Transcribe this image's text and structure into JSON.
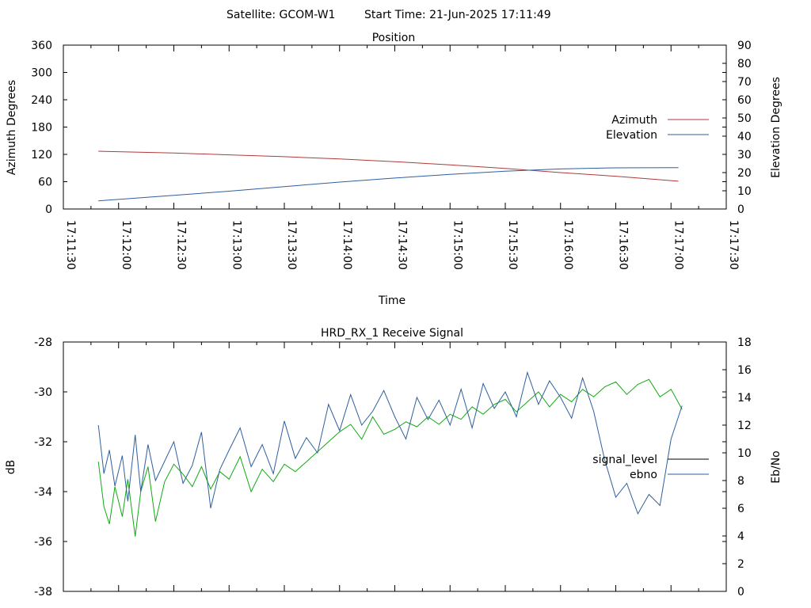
{
  "header": {
    "satellite": "Satellite: GCOM-W1",
    "start_time": "Start Time: 21-Jun-2025 17:11:49"
  },
  "colors": {
    "azimuth": "#b03a3a",
    "elevation": "#2f5f9f",
    "signal_level": "#000000",
    "ebno_legend": "#2f5f9f",
    "green_series": "#11aa11",
    "blue_series": "#2f5f9f"
  },
  "chart_data": [
    {
      "type": "line",
      "title": "Position",
      "xlabel": "Time",
      "ylabel": "Azimuth Degrees",
      "y2label": "Elevation Degrees",
      "xlim": [
        "17:11:30",
        "17:17:30"
      ],
      "xticks": [
        "17:11:30",
        "17:12:00",
        "17:12:30",
        "17:13:00",
        "17:13:30",
        "17:14:00",
        "17:14:30",
        "17:15:00",
        "17:15:30",
        "17:16:00",
        "17:16:30",
        "17:17:00",
        "17:17:30"
      ],
      "ylim": [
        0,
        360
      ],
      "yticks": [
        "0",
        "60",
        "120",
        "180",
        "240",
        "300",
        "360"
      ],
      "y2lim": [
        0,
        90
      ],
      "y2ticks": [
        "0",
        "10",
        "20",
        "30",
        "40",
        "50",
        "60",
        "70",
        "80",
        "90"
      ],
      "legend_position": "right",
      "series": [
        {
          "name": "Azimuth",
          "axis": "y",
          "color": "#b03a3a",
          "x": [
            "17:11:49",
            "17:12:30",
            "17:13:00",
            "17:13:30",
            "17:14:00",
            "17:14:30",
            "17:15:00",
            "17:15:30",
            "17:16:00",
            "17:16:30",
            "17:17:04"
          ],
          "y": [
            127,
            123,
            119,
            115,
            110,
            104,
            97,
            89,
            80,
            72,
            61
          ]
        },
        {
          "name": "Elevation",
          "axis": "y2",
          "color": "#2f5f9f",
          "x": [
            "17:11:49",
            "17:12:30",
            "17:13:00",
            "17:13:30",
            "17:14:00",
            "17:14:30",
            "17:15:00",
            "17:15:30",
            "17:16:00",
            "17:16:30",
            "17:17:04"
          ],
          "y": [
            4.5,
            7.5,
            9.8,
            12.3,
            14.8,
            17.0,
            19.0,
            20.8,
            22.0,
            22.6,
            22.7
          ]
        }
      ]
    },
    {
      "type": "line",
      "title": "HRD_RX_1 Receive Signal",
      "ylabel": "dB",
      "y2label": "Eb/No",
      "xlim": [
        "17:11:30",
        "17:17:30"
      ],
      "ylim": [
        -38,
        -28
      ],
      "yticks": [
        "-38",
        "-36",
        "-34",
        "-32",
        "-30",
        "-28"
      ],
      "y2lim": [
        0,
        18
      ],
      "y2ticks": [
        "0",
        "2",
        "4",
        "6",
        "8",
        "10",
        "12",
        "14",
        "16",
        "18"
      ],
      "legend_position": "right",
      "legend": [
        "signal_level",
        "ebno"
      ],
      "series": [
        {
          "axis": "y",
          "color": "#11aa11",
          "x": [
            "17:11:49",
            "17:11:52",
            "17:11:55",
            "17:11:58",
            "17:12:02",
            "17:12:05",
            "17:12:09",
            "17:12:12",
            "17:12:16",
            "17:12:20",
            "17:12:25",
            "17:12:30",
            "17:12:35",
            "17:12:40",
            "17:12:45",
            "17:12:50",
            "17:12:55",
            "17:13:00",
            "17:13:06",
            "17:13:12",
            "17:13:18",
            "17:13:24",
            "17:13:30",
            "17:13:36",
            "17:13:42",
            "17:13:48",
            "17:13:54",
            "17:14:00",
            "17:14:06",
            "17:14:12",
            "17:14:18",
            "17:14:24",
            "17:14:30",
            "17:14:36",
            "17:14:42",
            "17:14:48",
            "17:14:54",
            "17:15:00",
            "17:15:06",
            "17:15:12",
            "17:15:18",
            "17:15:24",
            "17:15:30",
            "17:15:36",
            "17:15:42",
            "17:15:48",
            "17:15:54",
            "17:16:00",
            "17:16:06",
            "17:16:12",
            "17:16:18",
            "17:16:24",
            "17:16:30",
            "17:16:36",
            "17:16:42",
            "17:16:48",
            "17:16:54",
            "17:17:00",
            "17:17:06"
          ],
          "y": [
            -32.8,
            -34.6,
            -35.3,
            -33.8,
            -35.0,
            -33.5,
            -35.8,
            -34.0,
            -33.0,
            -35.2,
            -33.6,
            -32.9,
            -33.3,
            -33.8,
            -33.0,
            -33.9,
            -33.2,
            -33.5,
            -32.6,
            -34.0,
            -33.1,
            -33.6,
            -32.9,
            -33.2,
            -32.8,
            -32.4,
            -32.0,
            -31.6,
            -31.3,
            -31.9,
            -31.0,
            -31.7,
            -31.5,
            -31.2,
            -31.4,
            -31.0,
            -31.3,
            -30.9,
            -31.1,
            -30.6,
            -30.9,
            -30.5,
            -30.3,
            -30.8,
            -30.4,
            -30.0,
            -30.6,
            -30.1,
            -30.4,
            -29.9,
            -30.2,
            -29.8,
            -29.6,
            -30.1,
            -29.7,
            -29.5,
            -30.2,
            -29.9,
            -30.7
          ]
        },
        {
          "axis": "y2",
          "color": "#2f5f9f",
          "x": [
            "17:11:49",
            "17:11:52",
            "17:11:55",
            "17:11:58",
            "17:12:02",
            "17:12:05",
            "17:12:09",
            "17:12:12",
            "17:12:16",
            "17:12:20",
            "17:12:25",
            "17:12:30",
            "17:12:35",
            "17:12:40",
            "17:12:45",
            "17:12:50",
            "17:12:55",
            "17:13:00",
            "17:13:06",
            "17:13:12",
            "17:13:18",
            "17:13:24",
            "17:13:30",
            "17:13:36",
            "17:13:42",
            "17:13:48",
            "17:13:54",
            "17:14:00",
            "17:14:06",
            "17:14:12",
            "17:14:18",
            "17:14:24",
            "17:14:30",
            "17:14:36",
            "17:14:42",
            "17:14:48",
            "17:14:54",
            "17:15:00",
            "17:15:06",
            "17:15:12",
            "17:15:18",
            "17:15:24",
            "17:15:30",
            "17:15:36",
            "17:15:42",
            "17:15:48",
            "17:15:54",
            "17:16:00",
            "17:16:06",
            "17:16:12",
            "17:16:18",
            "17:16:24",
            "17:16:30",
            "17:16:36",
            "17:16:42",
            "17:16:48",
            "17:16:54",
            "17:17:00",
            "17:17:06"
          ],
          "y": [
            12.0,
            8.5,
            10.2,
            7.6,
            9.8,
            6.5,
            11.3,
            7.2,
            10.6,
            8.0,
            9.4,
            10.8,
            7.8,
            9.1,
            11.5,
            6.0,
            8.8,
            10.2,
            11.8,
            9.0,
            10.6,
            8.5,
            12.3,
            9.6,
            11.1,
            10.0,
            13.5,
            11.6,
            14.2,
            12.0,
            13.0,
            14.5,
            12.6,
            11.0,
            14.0,
            12.4,
            13.8,
            12.0,
            14.6,
            11.8,
            15.0,
            13.2,
            14.4,
            12.6,
            15.8,
            13.5,
            15.2,
            14.0,
            12.5,
            15.4,
            13.0,
            9.5,
            6.8,
            7.8,
            5.6,
            7.0,
            6.2,
            11.0,
            13.4
          ]
        }
      ]
    }
  ]
}
